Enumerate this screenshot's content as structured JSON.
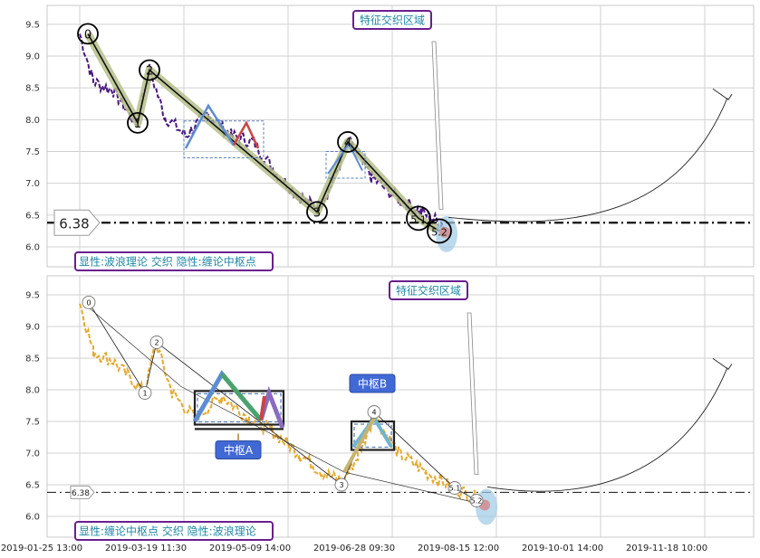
{
  "colors": {
    "panel1_price": "#4b1682",
    "panel2_price": "#e8a82b",
    "wave_highlight": "#b5c08a",
    "annotation_border": "#6a1e8f",
    "annotation_text": "#1f88a8",
    "zhongshu_label_bg": "#4169d6",
    "dashed_box": "#5a7fc0"
  },
  "chart_data": [
    {
      "type": "line",
      "panel": "top",
      "y_ticks": [
        "9.5",
        "9.0",
        "8.5",
        "8.0",
        "7.5",
        "7.0",
        "6.5",
        "6.0"
      ],
      "ylim": [
        5.75,
        9.85
      ],
      "grid": true,
      "price_line": {
        "level": 6.38,
        "label": "6.38"
      },
      "annotation_top": "特征交织区域",
      "legend_caption": "显性:波浪理论 交织 隐性:缠论中枢点",
      "wave_points": [
        {
          "label": "0",
          "x_index": 0,
          "y": 9.35
        },
        {
          "label": "1",
          "x_index": 1,
          "y": 7.95
        },
        {
          "label": "2",
          "x_index": 2,
          "y": 8.78
        },
        {
          "label": "3",
          "x_index": 3,
          "y": 6.55
        },
        {
          "label": "4",
          "x_index": 4,
          "y": 7.65
        },
        {
          "label": "5.1",
          "x_index": 5,
          "y": 6.45
        },
        {
          "label": "5.2",
          "x_index": 6,
          "y": 6.25
        }
      ]
    },
    {
      "type": "line",
      "panel": "bottom",
      "y_ticks": [
        "9.5",
        "9.0",
        "8.5",
        "8.0",
        "7.5",
        "7.0",
        "6.5",
        "6.0"
      ],
      "ylim": [
        5.75,
        9.85
      ],
      "grid": true,
      "price_line": {
        "level": 6.38,
        "label": "6.38"
      },
      "annotation_top": "特征交织区域",
      "legend_caption": "显性:缠论中枢点 交织 隐性:波浪理论",
      "zhongshu": [
        {
          "name": "中枢A",
          "low": 7.45,
          "high": 7.98
        },
        {
          "name": "中枢B",
          "low": 7.05,
          "high": 7.5
        }
      ],
      "wave_points": [
        {
          "label": "0",
          "y": 9.38
        },
        {
          "label": "1",
          "y": 7.95
        },
        {
          "label": "2",
          "y": 8.75
        },
        {
          "label": "3",
          "y": 6.5
        },
        {
          "label": "4",
          "y": 7.65
        },
        {
          "label": "5.1",
          "y": 6.45
        },
        {
          "label": "5.2",
          "y": 6.25
        }
      ],
      "x_ticks": [
        "2019-01-25 13:00",
        "2019-03-19 11:30",
        "2019-05-09 14:00",
        "2019-06-28 09:30",
        "2019-08-15 12:00",
        "2019-10-01 14:00",
        "2019-11-18 10:00"
      ]
    }
  ]
}
